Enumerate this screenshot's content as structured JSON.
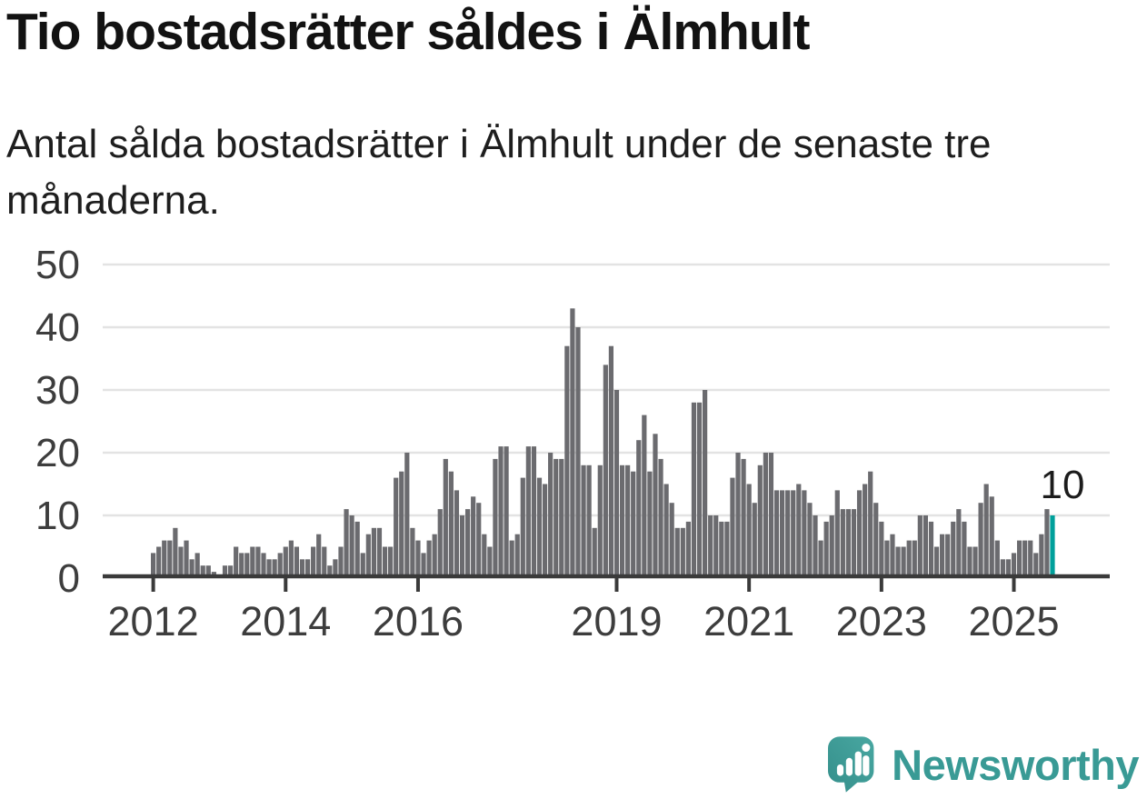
{
  "header": {
    "title": "Tio bostadsrätter såldes i Älmhult",
    "subtitle": "Antal sålda bostadsrätter i Älmhult under de senaste tre månaderna."
  },
  "chart_data": {
    "type": "bar",
    "title": "Tio bostadsrätter såldes i Älmhult",
    "xlabel": "",
    "ylabel": "",
    "ylim": [
      0,
      50
    ],
    "grid": "horizontal",
    "x_start": "2012-01",
    "x_end": "2025-08",
    "frequency": "monthly",
    "series_name": "Antal sålda bostadsrätter (rullande tre månader)",
    "values": [
      4,
      5,
      6,
      6,
      8,
      5,
      6,
      3,
      4,
      2,
      2,
      1,
      0,
      2,
      2,
      5,
      4,
      4,
      5,
      5,
      4,
      3,
      3,
      4,
      5,
      6,
      5,
      3,
      3,
      5,
      7,
      5,
      2,
      3,
      5,
      11,
      10,
      9,
      4,
      7,
      8,
      8,
      5,
      5,
      16,
      17,
      20,
      8,
      6,
      4,
      6,
      7,
      11,
      19,
      17,
      14,
      10,
      11,
      13,
      12,
      7,
      5,
      19,
      21,
      21,
      6,
      7,
      16,
      21,
      21,
      16,
      15,
      20,
      19,
      19,
      37,
      43,
      40,
      18,
      18,
      8,
      18,
      34,
      37,
      30,
      18,
      18,
      17,
      22,
      26,
      17,
      23,
      19,
      15,
      12,
      8,
      8,
      9,
      28,
      28,
      30,
      10,
      10,
      9,
      9,
      16,
      20,
      19,
      15,
      12,
      18,
      20,
      20,
      14,
      14,
      14,
      14,
      15,
      14,
      12,
      10,
      6,
      9,
      10,
      14,
      11,
      11,
      11,
      14,
      15,
      17,
      12,
      9,
      6,
      7,
      5,
      5,
      6,
      6,
      10,
      10,
      9,
      5,
      7,
      7,
      9,
      11,
      9,
      5,
      5,
      12,
      15,
      13,
      6,
      3,
      3,
      4,
      6,
      6,
      6,
      4,
      7,
      11,
      10
    ],
    "highlight_last": true,
    "last_value_label": "10",
    "y_ticks": [
      0,
      10,
      20,
      30,
      40,
      50
    ],
    "x_ticks": [
      {
        "label": "2012",
        "index": 0
      },
      {
        "label": "2014",
        "index": 24
      },
      {
        "label": "2016",
        "index": 48
      },
      {
        "label": "2019",
        "index": 84
      },
      {
        "label": "2021",
        "index": 108
      },
      {
        "label": "2023",
        "index": 132
      },
      {
        "label": "2025",
        "index": 156
      }
    ],
    "legend": null
  },
  "colors": {
    "bar": "#6b6b6f",
    "highlight": "#00a09b",
    "gridline": "#e3e3e3",
    "axis": "#3a3a3a",
    "tick_label": "#3d3d3d",
    "annotation": "#1c1c1c",
    "logo": "#3c9d98",
    "logo_text": "#399a95"
  },
  "footer": {
    "brand": "Newsworthy"
  }
}
